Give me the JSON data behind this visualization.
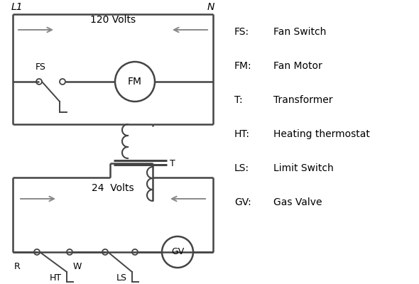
{
  "background_color": "#ffffff",
  "line_color": "#444444",
  "line_color_gray": "#888888",
  "text_color": "#000000",
  "legend_items": [
    [
      "FS:",
      "Fan Switch"
    ],
    [
      "FM:",
      "Fan Motor"
    ],
    [
      "T:",
      "Transformer"
    ],
    [
      "HT:",
      "Heating thermostat"
    ],
    [
      "LS:",
      "Limit Switch"
    ],
    [
      "GV:",
      "Gas Valve"
    ]
  ],
  "120V_text": "120 Volts",
  "24V_text": "24  Volts"
}
